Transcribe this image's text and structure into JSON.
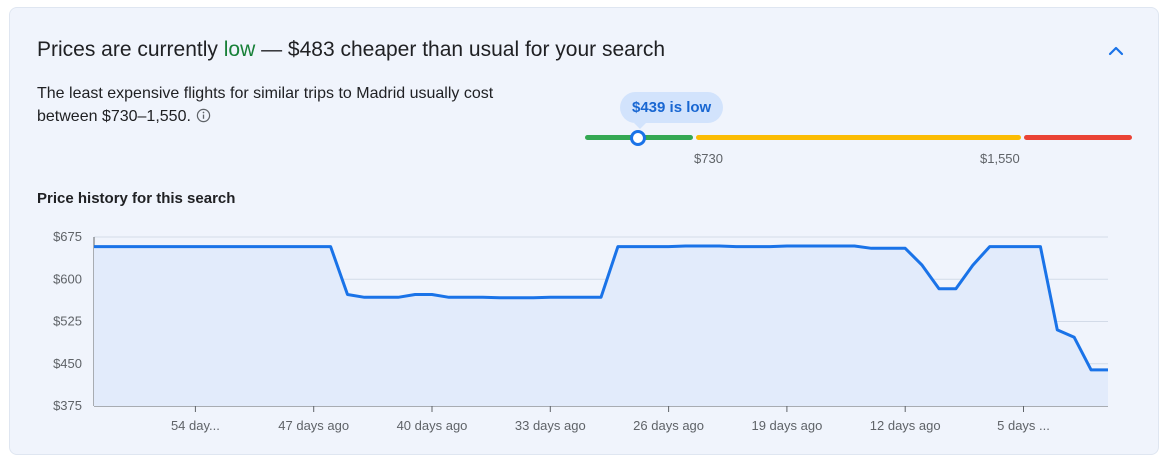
{
  "header": {
    "title_prefix": "Prices are currently ",
    "title_status": "low",
    "title_suffix": " — $483 cheaper than usual for your search",
    "status_color": "#188038",
    "collapse_icon": "chevron-up-icon"
  },
  "summary": {
    "text": "The least expensive flights for similar trips to Madrid usually cost between $730–1,550.",
    "info_icon": "info-icon"
  },
  "gauge": {
    "current_label": "$439 is low",
    "current_price": 439,
    "low_threshold": "$730",
    "high_threshold": "$1,550",
    "colors": {
      "low": "#34a853",
      "typical": "#fbbc04",
      "high": "#ea4335"
    }
  },
  "history": {
    "title": "Price history for this search"
  },
  "chart_data": {
    "type": "area",
    "title": "Price history for this search",
    "xlabel": "",
    "ylabel": "",
    "ylim": [
      375,
      675
    ],
    "y_ticks": [
      "$675",
      "$600",
      "$525",
      "$450",
      "$375"
    ],
    "x_tick_labels": [
      "54 day...",
      "47 days ago",
      "40 days ago",
      "33 days ago",
      "26 days ago",
      "19 days ago",
      "12 days ago",
      "5 days ..."
    ],
    "x_tick_days_ago": [
      54,
      47,
      40,
      33,
      26,
      19,
      12,
      5
    ],
    "x_range_days_ago": [
      60,
      0
    ],
    "grid": true,
    "line_color": "#1a73e8",
    "fill_color": "#e2ebfb",
    "series": [
      {
        "x_days_ago": [
          60,
          59,
          58,
          57,
          56,
          55,
          54,
          53,
          52,
          51,
          50,
          49,
          48,
          47,
          46,
          45,
          44,
          43,
          42,
          41,
          40,
          39,
          38,
          37,
          36,
          35,
          34,
          33,
          32,
          31,
          30,
          29,
          28,
          27,
          26,
          25,
          24,
          23,
          22,
          21,
          20,
          19,
          18,
          17,
          16,
          15,
          14,
          13,
          12,
          11,
          10,
          9,
          8,
          7,
          6,
          5,
          4,
          3,
          2,
          1,
          0
        ],
        "values": [
          658,
          658,
          658,
          658,
          658,
          658,
          658,
          658,
          658,
          658,
          658,
          658,
          658,
          658,
          658,
          573,
          568,
          568,
          568,
          573,
          573,
          568,
          568,
          568,
          567,
          567,
          567,
          568,
          568,
          568,
          568,
          658,
          658,
          658,
          658,
          659,
          659,
          659,
          658,
          658,
          658,
          659,
          659,
          659,
          659,
          659,
          655,
          655,
          655,
          625,
          583,
          583,
          625,
          658,
          658,
          658,
          658,
          510,
          497,
          439,
          439
        ]
      }
    ]
  }
}
